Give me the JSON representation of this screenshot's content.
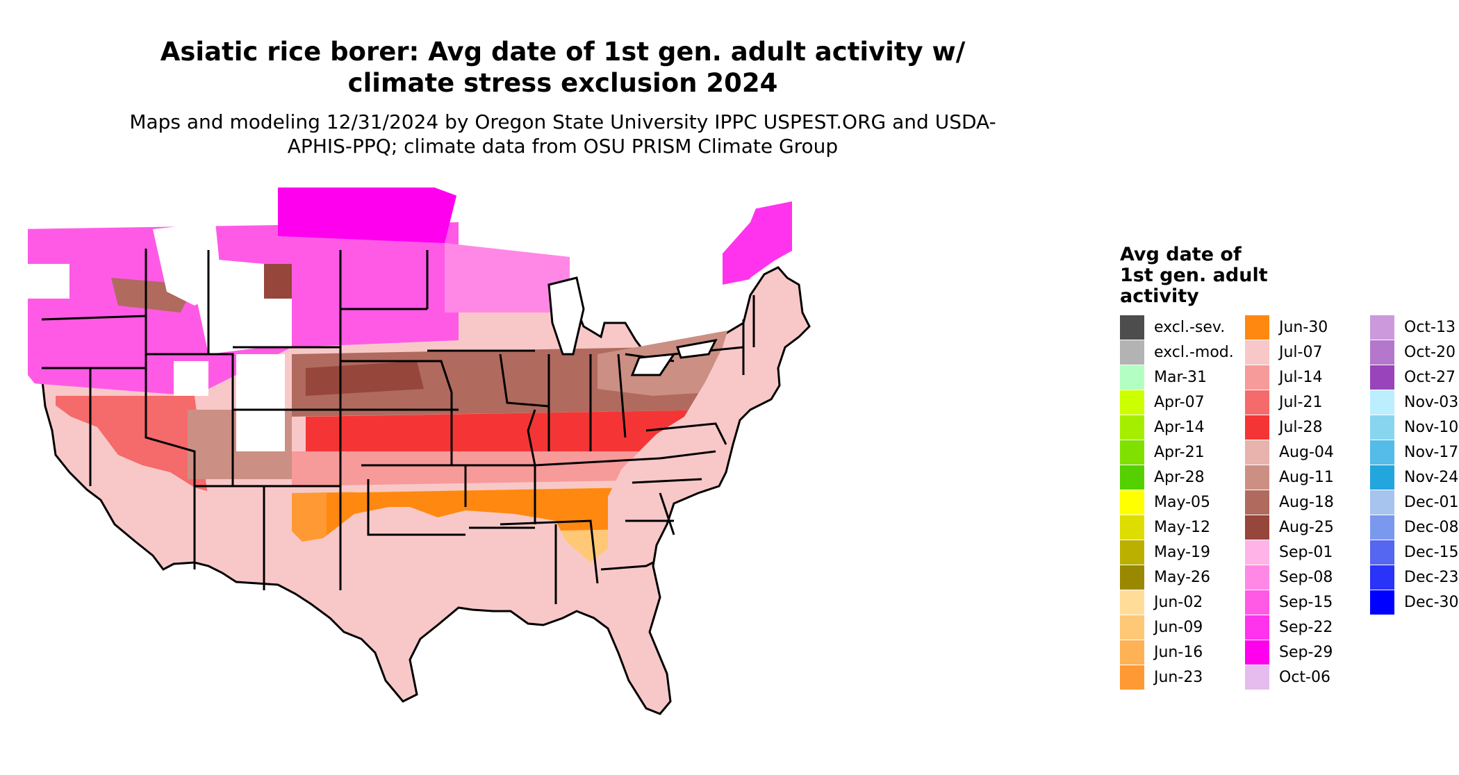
{
  "title": "Asiatic rice borer: Avg date of 1st gen. adult activity w/ climate stress exclusion 2024",
  "subtitle": "Maps and modeling 12/31/2024 by Oregon State University IPPC USPEST.ORG and USDA-APHIS-PPQ; climate data from OSU PRISM Climate Group",
  "legend": {
    "title": "Avg date of\n1st gen. adult\nactivity",
    "items": [
      {
        "label": "excl.-sev.",
        "color": "#4d4d4d"
      },
      {
        "label": "excl.-mod.",
        "color": "#b3b3b3"
      },
      {
        "label": "Mar-31",
        "color": "#b3ffc2"
      },
      {
        "label": "Apr-07",
        "color": "#ccff00"
      },
      {
        "label": "Apr-14",
        "color": "#a6ee00"
      },
      {
        "label": "Apr-21",
        "color": "#80e000"
      },
      {
        "label": "Apr-28",
        "color": "#55d000"
      },
      {
        "label": "May-05",
        "color": "#ffff00"
      },
      {
        "label": "May-12",
        "color": "#dddd00"
      },
      {
        "label": "May-19",
        "color": "#bbb000"
      },
      {
        "label": "May-26",
        "color": "#998800"
      },
      {
        "label": "Jun-02",
        "color": "#ffdd99"
      },
      {
        "label": "Jun-09",
        "color": "#ffc877"
      },
      {
        "label": "Jun-16",
        "color": "#ffb255"
      },
      {
        "label": "Jun-23",
        "color": "#ff9933"
      },
      {
        "label": "Jun-30",
        "color": "#ff8811"
      },
      {
        "label": "Jul-07",
        "color": "#f8c8c8"
      },
      {
        "label": "Jul-14",
        "color": "#f79a9a"
      },
      {
        "label": "Jul-21",
        "color": "#f56a6a"
      },
      {
        "label": "Jul-28",
        "color": "#f53535"
      },
      {
        "label": "Aug-04",
        "color": "#e8b3ad"
      },
      {
        "label": "Aug-11",
        "color": "#cc8f84"
      },
      {
        "label": "Aug-18",
        "color": "#b06a5e"
      },
      {
        "label": "Aug-25",
        "color": "#96463a"
      },
      {
        "label": "Sep-01",
        "color": "#ffb3e6"
      },
      {
        "label": "Sep-08",
        "color": "#ff88e6"
      },
      {
        "label": "Sep-15",
        "color": "#ff5ae6"
      },
      {
        "label": "Sep-22",
        "color": "#ff33ee"
      },
      {
        "label": "Sep-29",
        "color": "#ff00ee"
      },
      {
        "label": "Oct-06",
        "color": "#e6bbee"
      },
      {
        "label": "Oct-13",
        "color": "#cc99dd"
      },
      {
        "label": "Oct-20",
        "color": "#b577cc"
      },
      {
        "label": "Oct-27",
        "color": "#9944bb"
      },
      {
        "label": "Nov-03",
        "color": "#bbeeff"
      },
      {
        "label": "Nov-10",
        "color": "#88d5f0"
      },
      {
        "label": "Nov-17",
        "color": "#55bbe8"
      },
      {
        "label": "Nov-24",
        "color": "#22a6dd"
      },
      {
        "label": "Dec-01",
        "color": "#a6c4ee"
      },
      {
        "label": "Dec-08",
        "color": "#7a99ee"
      },
      {
        "label": "Dec-15",
        "color": "#5566f0"
      },
      {
        "label": "Dec-23",
        "color": "#2a33f8"
      },
      {
        "label": "Dec-30",
        "color": "#0000ff"
      }
    ]
  }
}
